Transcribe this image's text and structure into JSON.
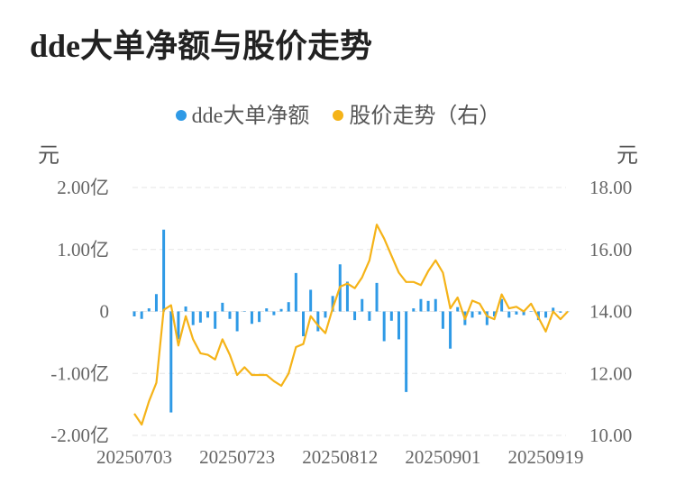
{
  "title": "dde大单净额与股价走势",
  "legend": [
    {
      "label": "dde大单净额",
      "color": "#2f9ae6"
    },
    {
      "label": "股价走势（右）",
      "color": "#f5b318"
    }
  ],
  "units": {
    "left": "元",
    "right": "元"
  },
  "chart_data": {
    "type": "bar+line",
    "title": "dde大单净额与股价走势",
    "y_left": {
      "ticks": [
        "2.00亿",
        "1.00亿",
        "0",
        "-1.00亿",
        "-2.00亿"
      ],
      "values": [
        2,
        1,
        0,
        -1,
        -2
      ],
      "unit": "亿元",
      "range": [
        -2,
        2
      ]
    },
    "y_right": {
      "ticks": [
        "18.00",
        "16.00",
        "14.00",
        "12.00",
        "10.00"
      ],
      "values": [
        18,
        16,
        14,
        12,
        10
      ],
      "range": [
        10,
        18
      ]
    },
    "x_ticks": [
      {
        "label": "20250703",
        "index": 0
      },
      {
        "label": "20250723",
        "index": 14
      },
      {
        "label": "20250812",
        "index": 28
      },
      {
        "label": "20250901",
        "index": 42
      },
      {
        "label": "20250919",
        "index": 56
      }
    ],
    "grid": true,
    "legend_position": "top",
    "series": [
      {
        "name": "dde大单净额",
        "kind": "bar",
        "axis": "left",
        "color": "#2f9ae6",
        "values": [
          -0.08,
          -0.12,
          0.05,
          0.28,
          1.32,
          -1.63,
          -0.45,
          0.08,
          -0.22,
          -0.18,
          -0.1,
          -0.28,
          0.14,
          -0.12,
          -0.32,
          0.0,
          -0.2,
          -0.17,
          0.05,
          -0.06,
          0.04,
          0.15,
          0.62,
          -0.4,
          0.35,
          -0.32,
          -0.1,
          0.25,
          0.76,
          0.48,
          -0.14,
          0.2,
          -0.15,
          0.46,
          -0.48,
          -0.15,
          -0.45,
          -1.3,
          0.05,
          0.2,
          0.17,
          0.2,
          -0.28,
          -0.6,
          0.07,
          -0.22,
          -0.1,
          -0.05,
          -0.22,
          -0.08,
          0.2,
          -0.1,
          -0.05,
          -0.06,
          0.0,
          -0.14,
          -0.1,
          0.06,
          -0.02,
          0.0
        ]
      },
      {
        "name": "股价走势（右）",
        "kind": "line",
        "axis": "right",
        "color": "#f5b318",
        "values": [
          10.7,
          10.35,
          11.1,
          11.7,
          14.05,
          14.2,
          12.9,
          13.85,
          13.1,
          12.65,
          12.6,
          12.45,
          13.1,
          12.6,
          11.95,
          12.2,
          11.95,
          11.95,
          11.95,
          11.75,
          11.6,
          12.0,
          12.85,
          12.95,
          13.85,
          13.55,
          13.3,
          14.1,
          14.8,
          14.9,
          14.75,
          15.1,
          15.65,
          16.8,
          16.35,
          15.8,
          15.25,
          14.95,
          14.95,
          14.85,
          15.3,
          15.65,
          15.25,
          14.1,
          14.45,
          13.75,
          14.35,
          14.25,
          13.85,
          13.75,
          14.55,
          14.1,
          14.15,
          14.0,
          14.25,
          13.8,
          13.35,
          14.0,
          13.75,
          14.0
        ]
      }
    ]
  }
}
